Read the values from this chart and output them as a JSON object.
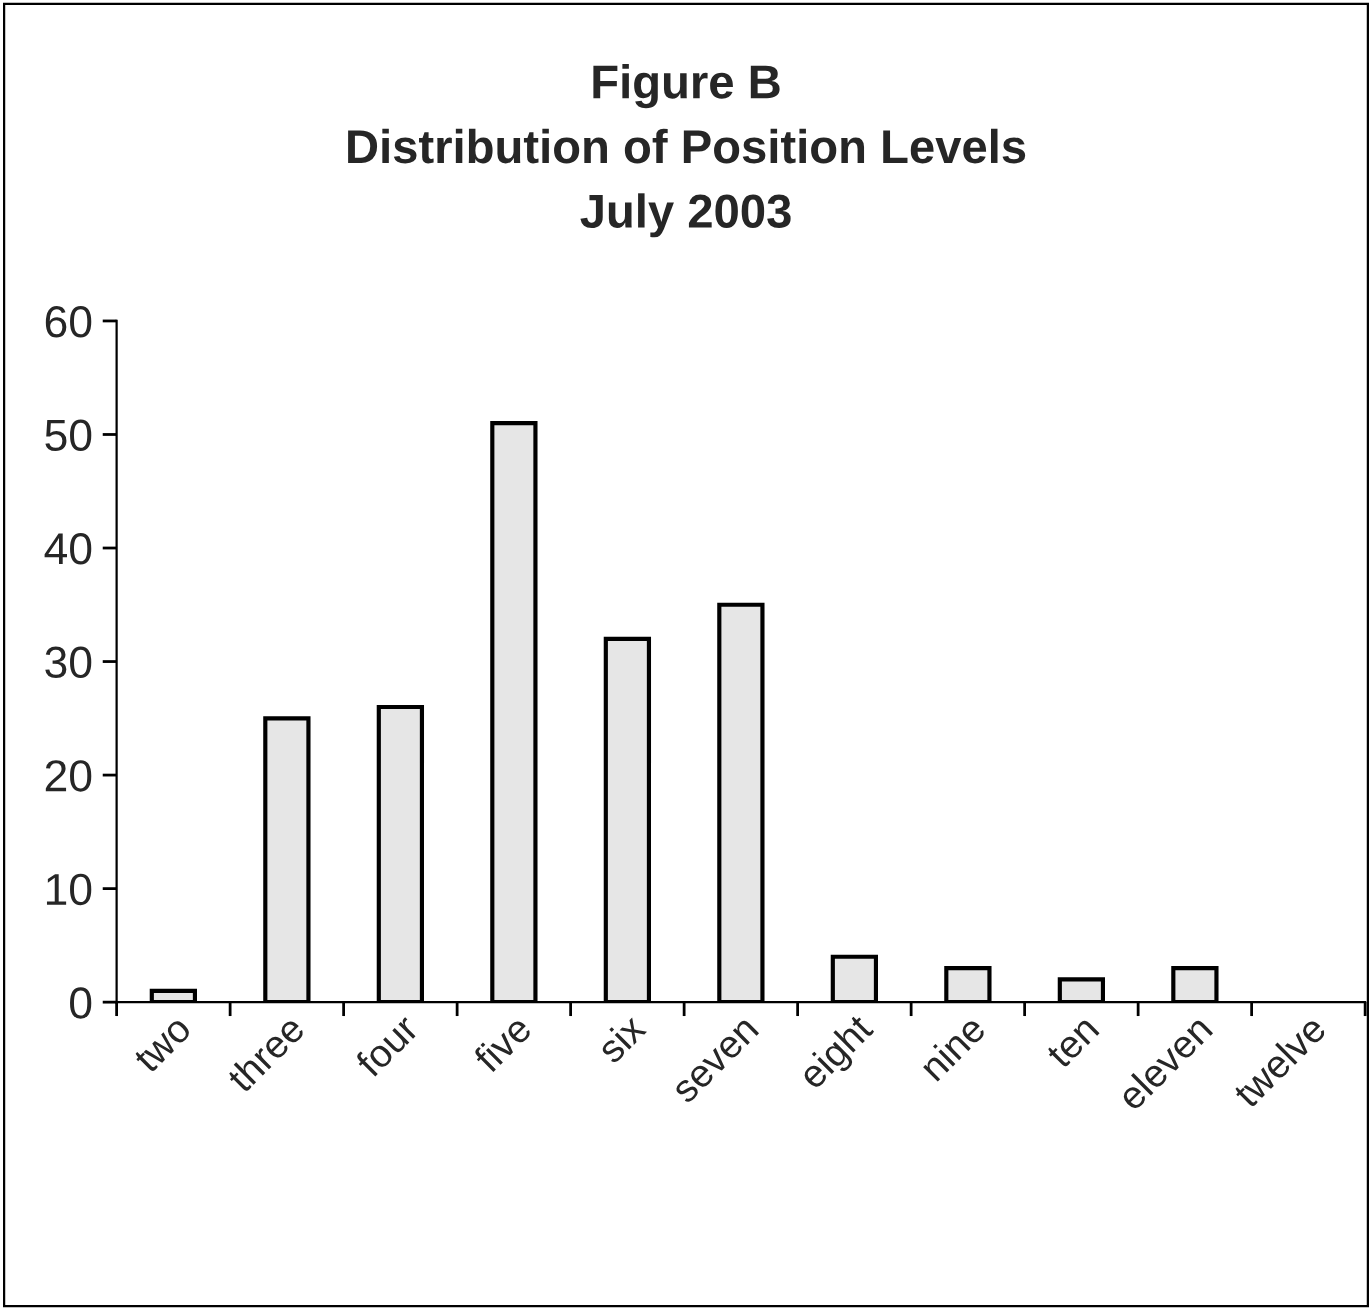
{
  "chart_data": {
    "type": "bar",
    "title": "Figure B\nDistribution of Position Levels\nJuly 2003",
    "categories": [
      "two",
      "three",
      "four",
      "five",
      "six",
      "seven",
      "eight",
      "nine",
      "ten",
      "eleven",
      "twelve"
    ],
    "values": [
      1,
      25,
      26,
      51,
      32,
      35,
      4,
      3,
      2,
      3,
      null
    ],
    "color": "#e6e6e6",
    "ylim": [
      0,
      60
    ],
    "yticks": [
      0,
      10,
      20,
      30,
      40,
      50,
      60
    ],
    "grid": false,
    "legend": false
  }
}
